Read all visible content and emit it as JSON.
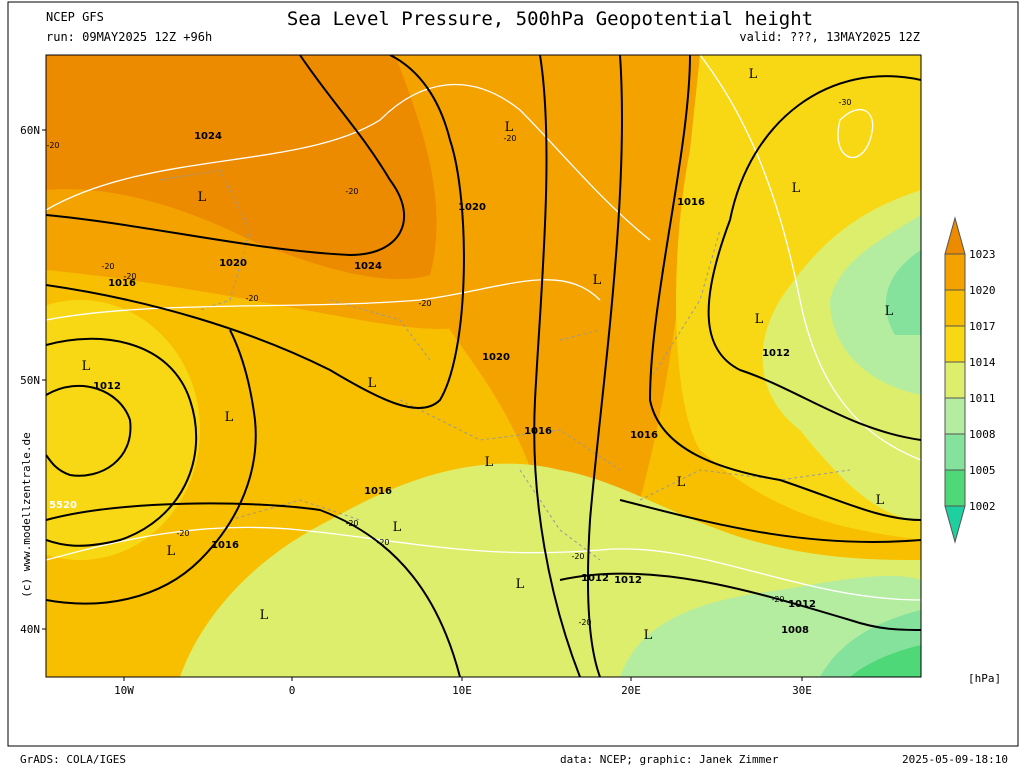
{
  "header": {
    "source": "NCEP GFS",
    "run": "run: 09MAY2025 12Z +96h",
    "title": "Sea Level Pressure, 500hPa Geopotential height",
    "valid": "valid: ???, 13MAY2025 12Z"
  },
  "map": {
    "lat_labels": [
      "60N",
      "50N",
      "40N"
    ],
    "lon_labels": [
      "10W",
      "0",
      "10E",
      "20E",
      "30E"
    ],
    "pressure_labels": [
      1024,
      1024,
      1020,
      1020,
      1016,
      1020,
      1012,
      1016,
      1016,
      1016,
      1012,
      1016,
      1016,
      1012,
      1012,
      1012,
      1008
    ],
    "height_label": 5520,
    "temp_labels": [
      -20,
      -20,
      -20,
      -20,
      -20,
      -20,
      -20,
      -20,
      -20,
      -20,
      -20,
      -20,
      -20,
      -30
    ],
    "low_markers": [
      "L",
      "L",
      "L",
      "L",
      "L",
      "L",
      "L",
      "L",
      "L",
      "L",
      "L",
      "L",
      "L",
      "L",
      "L",
      "L",
      "L",
      "L"
    ],
    "credit": "(c) www.modellzentrale.de"
  },
  "colorbar": {
    "labels": [
      1023,
      1020,
      1017,
      1014,
      1011,
      1008,
      1005,
      1002
    ],
    "colors": [
      "#ec8a00",
      "#f4a200",
      "#f7bf00",
      "#f8d814",
      "#ddee6c",
      "#b4eca0",
      "#84e29c",
      "#4ed878",
      "#1ecfa0"
    ],
    "unit": "[hPa]"
  },
  "footer": {
    "left": "GrADS: COLA/IGES",
    "center": "data: NCEP; graphic: Janek Zimmer",
    "right": "2025-05-09-18:10"
  }
}
